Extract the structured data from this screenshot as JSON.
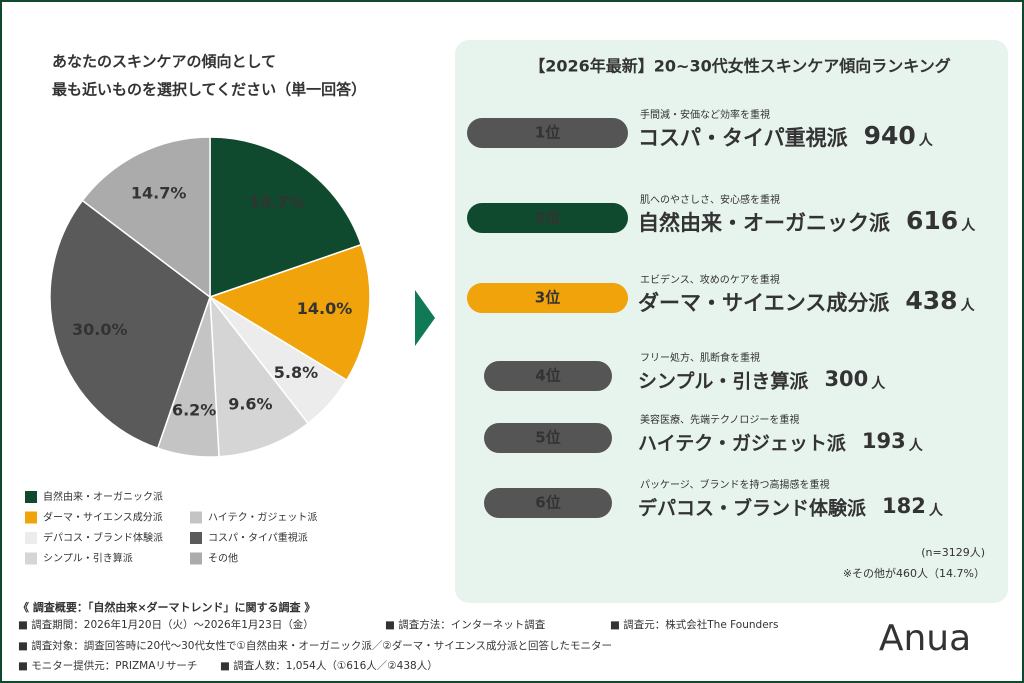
{
  "chart_data": {
    "type": "pie",
    "title": [
      "あなたのスキンケアの傾向として",
      "最も近いものを選択してください（単一回答）"
    ],
    "categories": [
      "自然由来・オーガニック派",
      "ダーマ・サイエンス成分派",
      "デパコス・ブランド体験派",
      "シンプル・引き算派",
      "ハイテク・ガジェット派",
      "コスパ・タイパ重視派",
      "その他"
    ],
    "values": [
      19.7,
      14.0,
      5.8,
      9.6,
      6.2,
      30.0,
      14.7
    ],
    "value_labels": [
      "19.7%",
      "14.0%",
      "5.8%",
      "9.6%",
      "6.2%",
      "30.0%",
      "14.7%"
    ],
    "colors": [
      "#0f4a2e",
      "#f0a30a",
      "#ececec",
      "#d6d5d5",
      "#c4c4c4",
      "#5a5a5a",
      "#ababab"
    ]
  },
  "ranking": {
    "title": "【2026年最新】20~30代女性スキンケア傾向ランキング",
    "items": [
      {
        "rank": "1位",
        "caption": "手間減・安価など効率を重視",
        "name": "コスパ・タイパ重視派",
        "count": 940,
        "unit": "人",
        "color": "#555555"
      },
      {
        "rank": "2位",
        "caption": "肌へのやさしさ、安心感を重視",
        "name": "自然由来・オーガニック派",
        "count": 616,
        "unit": "人",
        "color": "#0f4a2e"
      },
      {
        "rank": "3位",
        "caption": "エビデンス、攻めのケアを重視",
        "name": "ダーマ・サイエンス成分派",
        "count": 438,
        "unit": "人",
        "color": "#f0a30a"
      },
      {
        "rank": "4位",
        "caption": "フリー処方、肌断食を重視",
        "name": "シンプル・引き算派",
        "count": 300,
        "unit": "人",
        "color": "#555555"
      },
      {
        "rank": "5位",
        "caption": "美容医療、先端テクノロジーを重視",
        "name": "ハイテク・ガジェット派",
        "count": 193,
        "unit": "人",
        "color": "#555555"
      },
      {
        "rank": "6位",
        "caption": "パッケージ、ブランドを持つ高揚感を重視",
        "name": "デパコス・ブランド体験派",
        "count": 182,
        "unit": "人",
        "color": "#555555"
      }
    ],
    "note_n": "(n=3129人)",
    "note_other": "※その他が460人（14.7%）"
  },
  "footer": {
    "heading": "《 調査概要：「自然由来×ダーマトレンド」に関する調査 》",
    "lines": [
      "■ 調査期間：2026年1月20日（火）～2026年1月23日（金）",
      "■ 調査方法：インターネット調査",
      "■ 調査元：株式会社The Founders",
      "■ 調査対象：調査回答時に20代～30代女性で①自然由来・オーガニック派／②ダーマ・サイエンス成分派と回答したモニター",
      "■ モニター提供元：PRIZMAリサーチ",
      "■ 調査人数：1,054人（①616人／②438人）"
    ],
    "logo": "Anua"
  }
}
